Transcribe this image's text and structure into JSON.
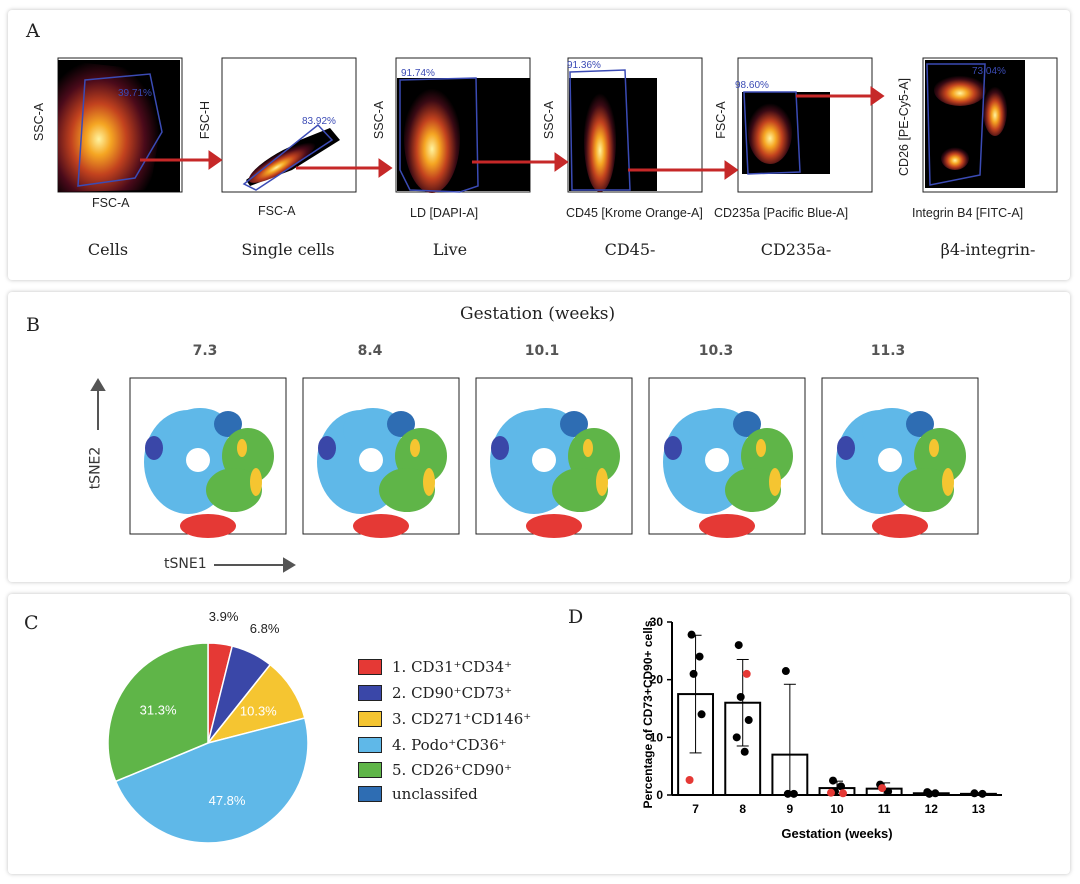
{
  "panelA": {
    "label": "A",
    "gates": [
      {
        "ylabel": "SSC-A",
        "xlabel": "FSC-A",
        "pct": "39.71%",
        "caption": "Cells"
      },
      {
        "ylabel": "FSC-H",
        "xlabel": "FSC-A",
        "pct": "83.92%",
        "caption": "Single cells"
      },
      {
        "ylabel": "SSC-A",
        "xlabel": "LD [DAPI-A]",
        "pct": "91.74%",
        "caption": "Live"
      },
      {
        "ylabel": "SSC-A",
        "xlabel": "CD45 [Krome Orange-A]",
        "pct": "91.36%",
        "caption": "CD45-"
      },
      {
        "ylabel": "FSC-A",
        "xlabel": "CD235a [Pacific Blue-A]",
        "pct": "98.60%",
        "caption": "CD235a-"
      },
      {
        "ylabel": "CD26 [PE-Cy5-A]",
        "xlabel": "Integrin B4 [FITC-A]",
        "pct": "73.04%",
        "caption": "β4-integrin-"
      }
    ]
  },
  "panelB": {
    "label": "B",
    "title": "Gestation (weeks)",
    "timepoints": [
      "7.3",
      "8.4",
      "10.1",
      "10.3",
      "11.3"
    ],
    "xaxis": "tSNE1",
    "yaxis": "tSNE2"
  },
  "panelC": {
    "label": "C",
    "legend": [
      {
        "text": "1. CD31⁺CD34⁺",
        "color": "#e53935"
      },
      {
        "text": "2. CD90⁺CD73⁺",
        "color": "#3a47a8"
      },
      {
        "text": "3. CD271⁺CD146⁺",
        "color": "#f5c531"
      },
      {
        "text": "4. Podo⁺CD36⁺",
        "color": "#5fb8e8"
      },
      {
        "text": "5. CD26⁺CD90⁺",
        "color": "#5fb548"
      },
      {
        "text": "unclassifed",
        "color": "#2e6db3"
      }
    ]
  },
  "chart_data": [
    {
      "type": "pie",
      "labels": [
        "1. CD31+CD34+",
        "2. CD90+CD73+",
        "3. CD271+CD146+",
        "4. Podo+CD36+",
        "5. CD26+CD90+"
      ],
      "values": [
        3.9,
        6.8,
        10.3,
        47.8,
        31.3
      ],
      "value_labels": [
        "3.9%",
        "6.8%",
        "10.3%",
        "47.8%",
        "31.3%"
      ],
      "colors": [
        "#e53935",
        "#3a47a8",
        "#f5c531",
        "#5fb8e8",
        "#5fb548"
      ]
    },
    {
      "type": "bar",
      "label": "D",
      "categories": [
        "7",
        "8",
        "9",
        "10",
        "11",
        "12",
        "13"
      ],
      "values": [
        17.5,
        16,
        7,
        1.2,
        1.1,
        0.3,
        0.2
      ],
      "error": [
        10.2,
        7.5,
        12.2,
        1.2,
        1.0,
        0.3,
        0.2
      ],
      "points": [
        {
          "x": "7",
          "y": 27.8,
          "color": "black"
        },
        {
          "x": "7",
          "y": 24.0,
          "color": "black"
        },
        {
          "x": "7",
          "y": 21.0,
          "color": "black"
        },
        {
          "x": "7",
          "y": 14.0,
          "color": "black"
        },
        {
          "x": "7",
          "y": 2.6,
          "color": "red"
        },
        {
          "x": "8",
          "y": 26.0,
          "color": "black"
        },
        {
          "x": "8",
          "y": 21.0,
          "color": "red"
        },
        {
          "x": "8",
          "y": 17.0,
          "color": "black"
        },
        {
          "x": "8",
          "y": 13.0,
          "color": "black"
        },
        {
          "x": "8",
          "y": 10.0,
          "color": "black"
        },
        {
          "x": "8",
          "y": 7.5,
          "color": "black"
        },
        {
          "x": "9",
          "y": 21.5,
          "color": "black"
        },
        {
          "x": "9",
          "y": 0.2,
          "color": "black"
        },
        {
          "x": "9",
          "y": 0.2,
          "color": "black"
        },
        {
          "x": "10",
          "y": 2.5,
          "color": "black"
        },
        {
          "x": "10",
          "y": 1.5,
          "color": "black"
        },
        {
          "x": "10",
          "y": 0.6,
          "color": "black"
        },
        {
          "x": "10",
          "y": 0.3,
          "color": "red"
        },
        {
          "x": "10",
          "y": 0.4,
          "color": "red"
        },
        {
          "x": "11",
          "y": 1.8,
          "color": "black"
        },
        {
          "x": "11",
          "y": 0.6,
          "color": "black"
        },
        {
          "x": "11",
          "y": 1.2,
          "color": "red"
        },
        {
          "x": "12",
          "y": 0.5,
          "color": "black"
        },
        {
          "x": "12",
          "y": 0.3,
          "color": "black"
        },
        {
          "x": "12",
          "y": 0.2,
          "color": "black"
        },
        {
          "x": "13",
          "y": 0.3,
          "color": "black"
        },
        {
          "x": "13",
          "y": 0.2,
          "color": "black"
        }
      ],
      "yticks": [
        0,
        10,
        20,
        30
      ],
      "ylim": [
        0,
        30
      ],
      "xlabel": "Gestation (weeks)",
      "ylabel": "Percentage of CD73+CD90+ cells"
    }
  ]
}
